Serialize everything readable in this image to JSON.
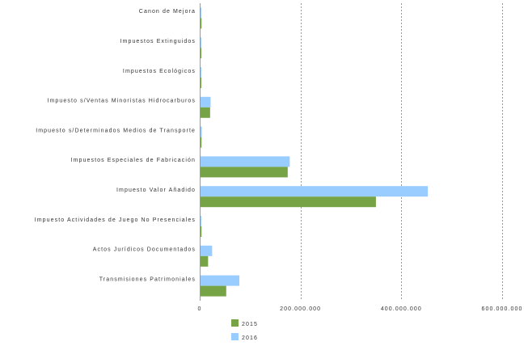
{
  "chart_data": {
    "type": "bar",
    "orientation": "horizontal",
    "categories": [
      "Canon de Mejora",
      "Impuestos Extinguidos",
      "Impuestos Ecológicos",
      "Impuesto s/Ventas Minoristas Hidrocarburos",
      "Impuesto s/Determinados Medios de Transporte",
      "Impuestos Especiales de Fabricación",
      "Impuesto Valor Añadido",
      "Impuesto Actividades de Juego No Presenciales",
      "Actos Jurídicos Documentados",
      "Transmisiones Patrimoniales"
    ],
    "series": [
      {
        "name": "2015",
        "color": "#77a347",
        "values": [
          2000000,
          300000,
          500000,
          19000000,
          2000000,
          173000000,
          348000000,
          2000000,
          15000000,
          51000000
        ]
      },
      {
        "name": "2016",
        "color": "#99ccff",
        "values": [
          1500000,
          200000,
          400000,
          20000000,
          2500000,
          177000000,
          451000000,
          1500000,
          23000000,
          77000000
        ]
      }
    ],
    "xlim": [
      0,
      600000000
    ],
    "xticks": [
      {
        "value": 0,
        "label": "0"
      },
      {
        "value": 200000000,
        "label": "200.000.000"
      },
      {
        "value": 400000000,
        "label": "400.000.000"
      },
      {
        "value": 600000000,
        "label": "600.000.000"
      }
    ],
    "grid": "vertical-dashed",
    "legend_position": "bottom"
  }
}
